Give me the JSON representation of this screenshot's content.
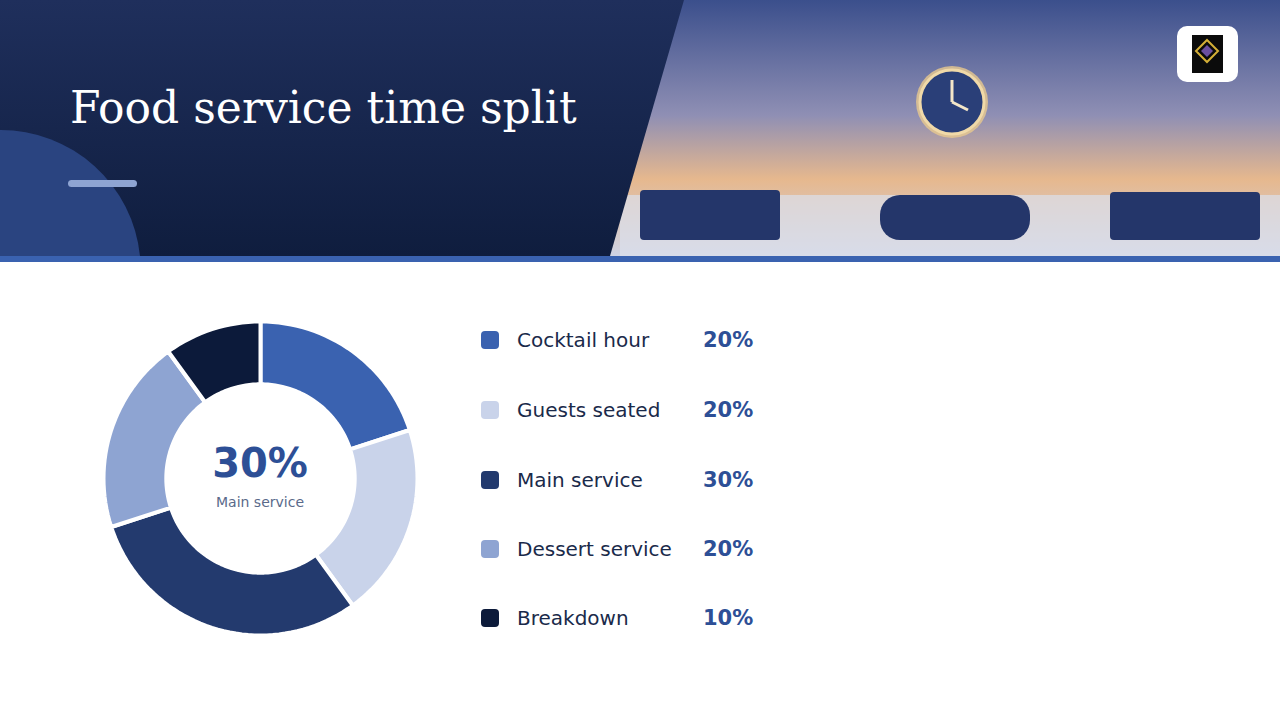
{
  "chart_data": {
    "type": "donut",
    "title": "Food service time split",
    "categories": [
      "Cocktail hour",
      "Guests seated",
      "Main service",
      "Dessert service",
      "Breakdown"
    ],
    "values": [
      20,
      20,
      30,
      20,
      10
    ],
    "value_labels": [
      "20%",
      "20%",
      "30%",
      "20%",
      "10%"
    ],
    "colors": [
      "#3a62b0",
      "#c9d3ea",
      "#233a6e",
      "#8ea4d2",
      "#0c1a3a"
    ],
    "legend": "right"
  }
}
